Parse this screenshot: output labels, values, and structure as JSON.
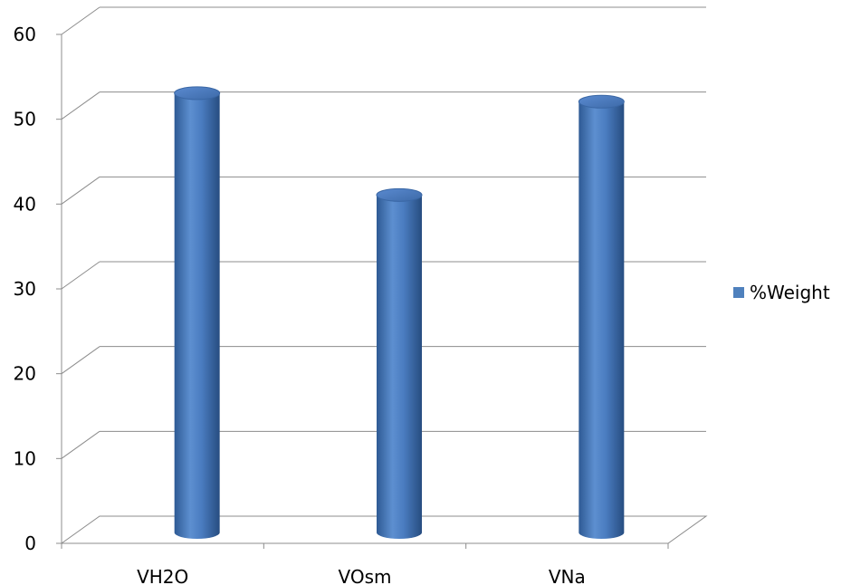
{
  "chart_data": {
    "type": "bar",
    "style": "3d-cylinder",
    "title": "",
    "xlabel": "",
    "ylabel": "",
    "categories": [
      "VH2O",
      "VOsm",
      "VNa"
    ],
    "series": [
      {
        "name": "%Weight",
        "values": [
          52,
          40,
          51
        ],
        "color": "#4F81BD"
      }
    ],
    "ylim": [
      0,
      60
    ],
    "yticks": [
      "0",
      "10",
      "20",
      "30",
      "40",
      "50",
      "60"
    ],
    "grid": true,
    "legend": "right"
  }
}
